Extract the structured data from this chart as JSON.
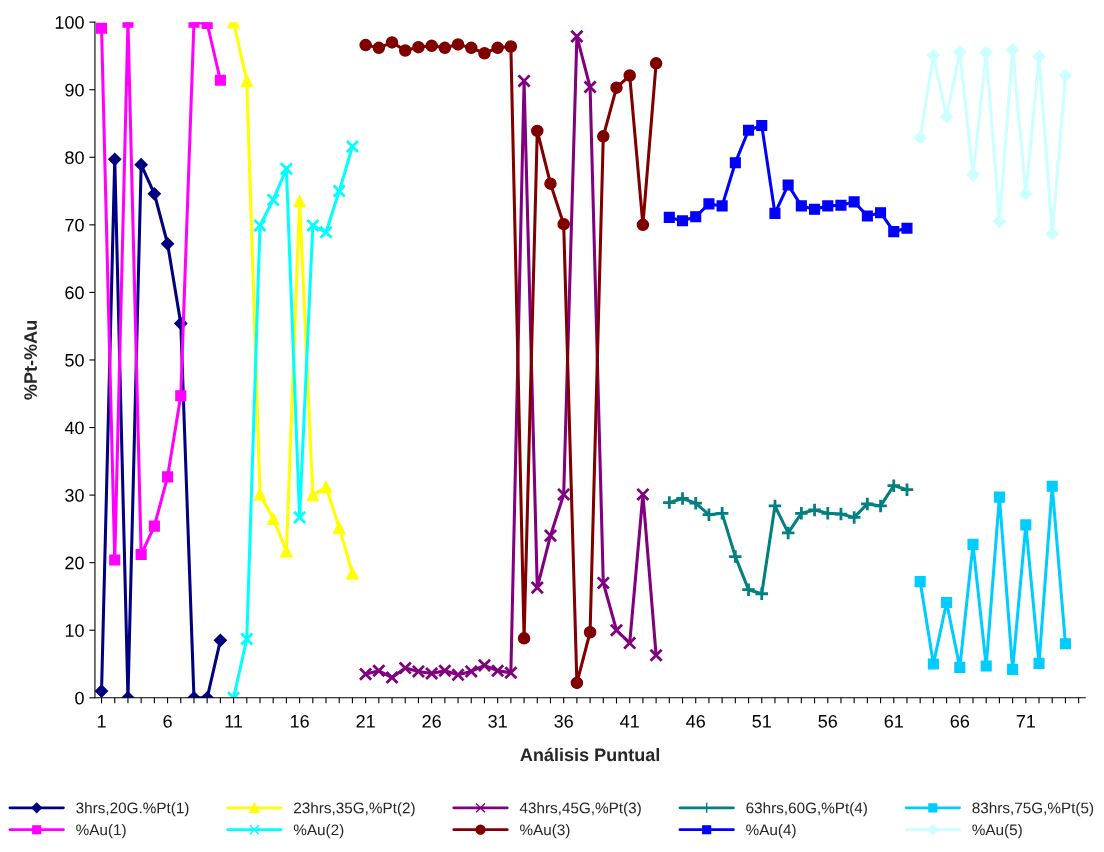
{
  "chart_data": {
    "type": "line",
    "xlabel": "Análisis Puntual",
    "ylabel": "%Pt-%Au",
    "categories": [
      "1",
      null,
      null,
      null,
      null,
      "6",
      null,
      null,
      null,
      null,
      "11",
      null,
      null,
      null,
      null,
      "16",
      null,
      null,
      null,
      null,
      "21",
      null,
      null,
      null,
      null,
      "26",
      null,
      null,
      null,
      null,
      "31",
      null,
      null,
      null,
      null,
      "36",
      null,
      null,
      null,
      null,
      "41",
      null,
      null,
      null,
      null,
      "46",
      null,
      null,
      null,
      null,
      "51",
      null,
      null,
      null,
      null,
      "56",
      null,
      null,
      null,
      null,
      "61",
      null,
      null,
      null,
      null,
      "66",
      null,
      null,
      null,
      null,
      "71",
      null,
      null,
      null,
      null
    ],
    "ylim": [
      0,
      100
    ],
    "yticks": [
      0,
      10,
      20,
      30,
      40,
      50,
      60,
      70,
      80,
      90,
      100
    ],
    "grid": false,
    "legend": "bottom",
    "series": [
      {
        "name": "3hrs,20G.%Pt(1)",
        "color": "#000080",
        "marker": "diamond",
        "values": [
          1.0,
          79.7,
          0,
          78.9,
          74.6,
          67.2,
          55.4,
          0,
          0,
          8.5,
          null,
          null,
          null,
          null,
          null,
          null,
          null,
          null,
          null,
          null,
          null,
          null,
          null,
          null,
          null,
          null,
          null,
          null,
          null,
          null,
          null,
          null,
          null,
          null,
          null,
          null,
          null,
          null,
          null,
          null,
          null,
          null,
          null,
          null,
          null,
          null,
          null,
          null,
          null,
          null,
          null,
          null,
          null,
          null,
          null,
          null,
          null,
          null,
          null,
          null,
          null,
          null,
          null,
          null,
          null,
          null,
          null,
          null,
          null,
          null,
          null,
          null,
          null,
          null,
          null
        ]
      },
      {
        "name": "%Au(1)",
        "color": "#ff00ff",
        "marker": "square",
        "values": [
          99.1,
          20.4,
          100,
          21.2,
          25.4,
          32.7,
          44.7,
          100,
          99.8,
          91.4,
          null,
          null,
          null,
          null,
          null,
          null,
          null,
          null,
          null,
          null,
          null,
          null,
          null,
          null,
          null,
          null,
          null,
          null,
          null,
          null,
          null,
          null,
          null,
          null,
          null,
          null,
          null,
          null,
          null,
          null,
          null,
          null,
          null,
          null,
          null,
          null,
          null,
          null,
          null,
          null,
          null,
          null,
          null,
          null,
          null,
          null,
          null,
          null,
          null,
          null,
          null,
          null,
          null,
          null,
          null,
          null,
          null,
          null,
          null,
          null,
          null,
          null,
          null,
          null,
          null
        ]
      },
      {
        "name": "23hrs,35G,%Pt(2)",
        "color": "#ffff00",
        "marker": "triangle",
        "values": [
          null,
          null,
          null,
          null,
          null,
          null,
          null,
          null,
          null,
          null,
          100,
          91.3,
          30.1,
          26.5,
          21.7,
          73.5,
          30.0,
          31.2,
          25.2,
          18.4,
          null,
          null,
          null,
          null,
          null,
          null,
          null,
          null,
          null,
          null,
          null,
          null,
          null,
          null,
          null,
          null,
          null,
          null,
          null,
          null,
          null,
          null,
          null,
          null,
          null,
          null,
          null,
          null,
          null,
          null,
          null,
          null,
          null,
          null,
          null,
          null,
          null,
          null,
          null,
          null,
          null,
          null,
          null,
          null,
          null,
          null,
          null,
          null,
          null,
          null,
          null,
          null,
          null,
          null,
          null
        ]
      },
      {
        "name": "%Au(2)",
        "color": "#00ffff",
        "marker": "cross",
        "values": [
          null,
          null,
          null,
          null,
          null,
          null,
          null,
          null,
          null,
          null,
          0,
          8.7,
          69.9,
          73.7,
          78.3,
          26.7,
          69.9,
          68.9,
          75.0,
          81.6,
          null,
          null,
          null,
          null,
          null,
          null,
          null,
          null,
          null,
          null,
          null,
          null,
          null,
          null,
          null,
          null,
          null,
          null,
          null,
          null,
          null,
          null,
          null,
          null,
          null,
          null,
          null,
          null,
          null,
          null,
          null,
          null,
          null,
          null,
          null,
          null,
          null,
          null,
          null,
          null,
          null,
          null,
          null,
          null,
          null,
          null,
          null,
          null,
          null,
          null,
          null,
          null,
          null,
          null,
          null
        ]
      },
      {
        "name": "43hrs,45G,%Pt(3)",
        "color": "#800080",
        "marker": "cross",
        "values": [
          null,
          null,
          null,
          null,
          null,
          null,
          null,
          null,
          null,
          null,
          null,
          null,
          null,
          null,
          null,
          null,
          null,
          null,
          null,
          null,
          3.5,
          4.0,
          3.0,
          4.4,
          3.9,
          3.6,
          4.0,
          3.4,
          3.9,
          4.8,
          4.0,
          3.7,
          91.3,
          16.3,
          24.0,
          30.1,
          97.9,
          90.4,
          17.0,
          10.0,
          8.1,
          30.1,
          6.3,
          null,
          null,
          null,
          null,
          null,
          null,
          null,
          null,
          null,
          null,
          null,
          null,
          null,
          null,
          null,
          null,
          null,
          null,
          null,
          null,
          null,
          null,
          null,
          null,
          null,
          null,
          null,
          null,
          null,
          null,
          null,
          null
        ]
      },
      {
        "name": "%Au(3)",
        "color": "#800000",
        "marker": "circle",
        "values": [
          null,
          null,
          null,
          null,
          null,
          null,
          null,
          null,
          null,
          null,
          null,
          null,
          null,
          null,
          null,
          null,
          null,
          null,
          null,
          null,
          96.6,
          96.2,
          97.0,
          95.8,
          96.3,
          96.5,
          96.2,
          96.7,
          96.2,
          95.4,
          96.2,
          96.4,
          8.8,
          83.9,
          76.1,
          70.1,
          2.2,
          9.7,
          83.1,
          90.3,
          92.1,
          70.0,
          93.9,
          null,
          null,
          null,
          null,
          null,
          null,
          null,
          null,
          null,
          null,
          null,
          null,
          null,
          null,
          null,
          null,
          null,
          null,
          null,
          null,
          null,
          null,
          null,
          null,
          null,
          null,
          null,
          null,
          null,
          null,
          null,
          null
        ]
      },
      {
        "name": "63hrs,60G,%Pt(4)",
        "color": "#008080",
        "marker": "plus",
        "values": [
          null,
          null,
          null,
          null,
          null,
          null,
          null,
          null,
          null,
          null,
          null,
          null,
          null,
          null,
          null,
          null,
          null,
          null,
          null,
          null,
          null,
          null,
          null,
          null,
          null,
          null,
          null,
          null,
          null,
          null,
          null,
          null,
          null,
          null,
          null,
          null,
          null,
          null,
          null,
          null,
          null,
          null,
          null,
          28.9,
          29.5,
          28.8,
          27.1,
          27.3,
          20.9,
          16.0,
          15.4,
          28.4,
          24.4,
          27.3,
          27.8,
          27.3,
          27.2,
          26.7,
          28.7,
          28.4,
          31.4,
          30.8,
          null,
          null,
          null,
          null,
          null,
          null,
          null,
          null,
          null,
          null,
          null,
          null,
          null
        ]
      },
      {
        "name": "%Au(4)",
        "color": "#0000ff",
        "marker": "square",
        "values": [
          null,
          null,
          null,
          null,
          null,
          null,
          null,
          null,
          null,
          null,
          null,
          null,
          null,
          null,
          null,
          null,
          null,
          null,
          null,
          null,
          null,
          null,
          null,
          null,
          null,
          null,
          null,
          null,
          null,
          null,
          null,
          null,
          null,
          null,
          null,
          null,
          null,
          null,
          null,
          null,
          null,
          null,
          null,
          71.1,
          70.6,
          71.2,
          73.1,
          72.8,
          79.2,
          84.0,
          84.7,
          71.7,
          75.9,
          72.8,
          72.3,
          72.8,
          72.9,
          73.4,
          71.3,
          71.8,
          69.0,
          69.5,
          null,
          null,
          null,
          null,
          null,
          null,
          null,
          null,
          null,
          null,
          null,
          null,
          null
        ]
      },
      {
        "name": "83hrs,75G,%Pt(5)",
        "color": "#00ccff",
        "marker": "square",
        "values": [
          null,
          null,
          null,
          null,
          null,
          null,
          null,
          null,
          null,
          null,
          null,
          null,
          null,
          null,
          null,
          null,
          null,
          null,
          null,
          null,
          null,
          null,
          null,
          null,
          null,
          null,
          null,
          null,
          null,
          null,
          null,
          null,
          null,
          null,
          null,
          null,
          null,
          null,
          null,
          null,
          null,
          null,
          null,
          null,
          null,
          null,
          null,
          null,
          null,
          null,
          null,
          null,
          null,
          null,
          null,
          null,
          null,
          null,
          null,
          null,
          null,
          null,
          17.2,
          5.0,
          14.1,
          4.5,
          22.7,
          4.7,
          29.7,
          4.2,
          25.6,
          5.1,
          31.3,
          8.0,
          null
        ]
      },
      {
        "name": "%Au(5)",
        "color": "#ccffff",
        "marker": "diamond",
        "values": [
          null,
          null,
          null,
          null,
          null,
          null,
          null,
          null,
          null,
          null,
          null,
          null,
          null,
          null,
          null,
          null,
          null,
          null,
          null,
          null,
          null,
          null,
          null,
          null,
          null,
          null,
          null,
          null,
          null,
          null,
          null,
          null,
          null,
          null,
          null,
          null,
          null,
          null,
          null,
          null,
          null,
          null,
          null,
          null,
          null,
          null,
          null,
          null,
          null,
          null,
          null,
          null,
          null,
          null,
          null,
          null,
          null,
          null,
          null,
          null,
          null,
          null,
          82.9,
          95.1,
          86.0,
          95.6,
          77.4,
          95.5,
          70.5,
          95.9,
          74.6,
          94.9,
          68.7,
          92.1,
          null
        ]
      }
    ]
  }
}
